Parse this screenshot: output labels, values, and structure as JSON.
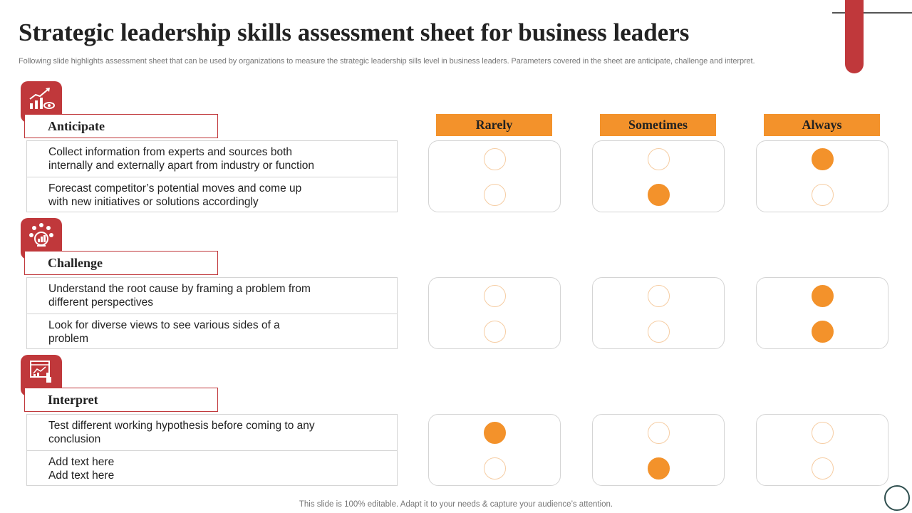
{
  "title": "Strategic leadership skills assessment sheet for business leaders",
  "subtitle": "Following slide highlights assessment sheet that can be used by organizations to measure the strategic leadership sills level in business leaders. Parameters covered in the sheet are anticipate, challenge and interpret.",
  "columns": [
    "Rarely",
    "Sometimes",
    "Always"
  ],
  "sections": [
    {
      "label": "Anticipate",
      "icon": "growth-chart-icon",
      "items": [
        {
          "lines": [
            "Collect information from experts and sources both",
            "internally and externally  apart from industry  or function"
          ],
          "rating": "Always"
        },
        {
          "lines": [
            "Forecast competitor’s potential moves and come up",
            "with new initiatives or solutions accordingly"
          ],
          "rating": "Sometimes"
        }
      ]
    },
    {
      "label": "Challenge",
      "icon": "team-analysis-icon",
      "items": [
        {
          "lines": [
            "Understand the root cause by framing a problem from",
            "different perspectives"
          ],
          "rating": "Always"
        },
        {
          "lines": [
            "Look for diverse views to see various sides of a",
            "problem"
          ],
          "rating": "Always"
        }
      ]
    },
    {
      "label": "Interpret",
      "icon": "presentation-board-icon",
      "items": [
        {
          "lines": [
            "Test different working hypothesis before coming to any",
            "conclusion"
          ],
          "rating": "Rarely"
        },
        {
          "lines": [
            "Add text here",
            "Add text here"
          ],
          "rating": "Sometimes"
        }
      ]
    }
  ],
  "footer": "This slide is 100% editable. Adapt it to your needs & capture your audience’s attention.",
  "colors": {
    "accent_red": "#c0383b",
    "accent_orange": "#f3922b",
    "circle_outline": "#f6cda3"
  }
}
